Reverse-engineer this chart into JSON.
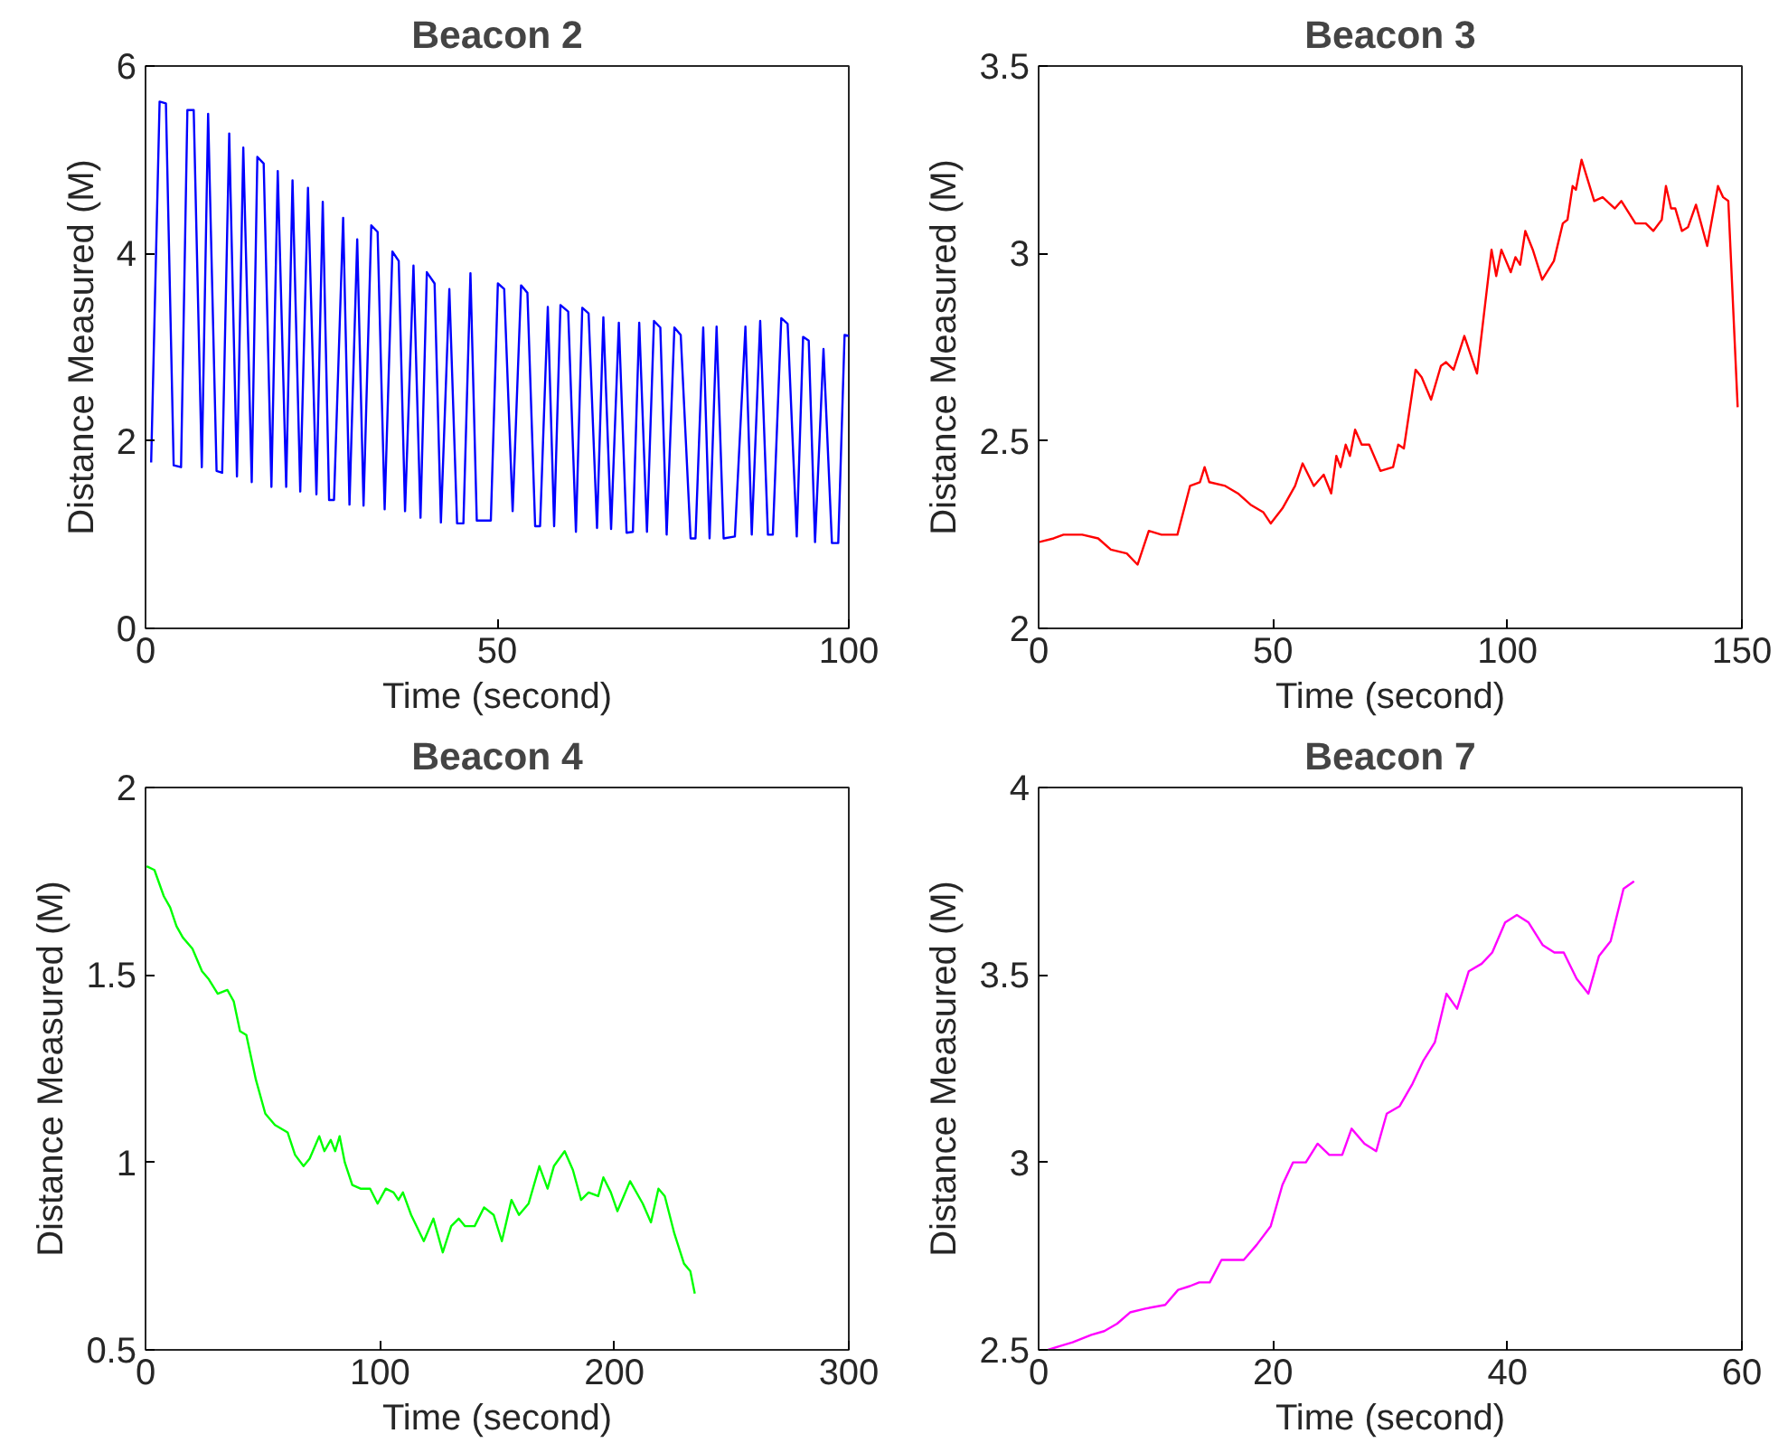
{
  "chart_data": [
    {
      "type": "line",
      "title": "Beacon 2",
      "xlabel": "Time (second)",
      "ylabel": "Distance Measured (M)",
      "color": "#0000ff",
      "grid": false,
      "xlim": [
        0,
        100
      ],
      "ylim": [
        0,
        6
      ],
      "xticks": [
        0,
        50,
        100
      ],
      "yticks": [
        0,
        2,
        4,
        6
      ],
      "x": [
        0.8,
        2,
        2.9,
        4,
        5.05,
        5.95,
        6.85,
        8.0,
        8.9,
        10.1,
        10.9,
        11.9,
        13,
        13.9,
        15.1,
        15.9,
        16.8,
        17.9,
        18.8,
        20,
        20.9,
        22,
        23.1,
        24.3,
        25.2,
        26.1,
        26.8,
        28.1,
        29,
        30.1,
        31,
        32.1,
        33,
        34,
        35.1,
        36,
        36.9,
        38.1,
        39.1,
        40,
        41.1,
        42,
        43.2,
        44.3,
        45.2,
        46.2,
        47.1,
        49.1,
        50.1,
        51,
        52.2,
        53.4,
        54.3,
        55.4,
        56.1,
        57.2,
        58.1,
        59,
        60.1,
        61.2,
        62.1,
        63,
        64.2,
        65.1,
        66.2,
        67.3,
        68.4,
        69.3,
        70.2,
        71.3,
        72.3,
        73.2,
        74.1,
        75.2,
        76.1,
        77.5,
        78.2,
        79.3,
        80.2,
        81.2,
        82.2,
        83.8,
        85.3,
        86.2,
        87.4,
        88.5,
        89.2,
        90.4,
        91.3,
        92.6,
        93.5,
        94.3,
        95.2,
        96.4,
        97.6,
        98.5,
        99.4,
        100
      ],
      "values": [
        1.77,
        5.62,
        5.6,
        1.74,
        1.72,
        5.53,
        5.53,
        1.72,
        5.49,
        1.68,
        1.66,
        5.28,
        1.62,
        5.13,
        1.56,
        5.03,
        4.96,
        1.51,
        4.88,
        1.51,
        4.78,
        1.46,
        4.7,
        1.43,
        4.55,
        1.37,
        1.37,
        4.38,
        1.32,
        4.15,
        1.31,
        4.3,
        4.23,
        1.27,
        4.02,
        3.92,
        1.25,
        3.87,
        1.18,
        3.8,
        3.68,
        1.13,
        3.62,
        1.12,
        1.12,
        3.79,
        1.15,
        1.15,
        3.68,
        3.62,
        1.25,
        3.66,
        3.58,
        1.09,
        1.09,
        3.43,
        1.09,
        3.45,
        3.38,
        1.03,
        3.42,
        3.36,
        1.07,
        3.32,
        1.06,
        3.26,
        1.02,
        1.03,
        3.26,
        1.03,
        3.28,
        3.21,
        1.0,
        3.21,
        3.13,
        0.96,
        0.96,
        3.21,
        0.96,
        3.22,
        0.96,
        0.98,
        3.22,
        1.0,
        3.28,
        1.0,
        1.0,
        3.31,
        3.25,
        0.98,
        3.11,
        3.07,
        0.92,
        2.98,
        0.91,
        0.91,
        3.13,
        3.12
      ]
    },
    {
      "type": "line",
      "title": "Beacon 3",
      "xlabel": "Time (second)",
      "ylabel": "Distance Measured (M)",
      "color": "#ff0000",
      "grid": false,
      "xlim": [
        0,
        150
      ],
      "ylim": [
        2,
        3.5
      ],
      "xticks": [
        0,
        50,
        100,
        150
      ],
      "yticks": [
        2,
        2.5,
        3,
        3.5
      ],
      "x": [
        0,
        3.2,
        5.3,
        9.3,
        12.7,
        15.4,
        18.8,
        21.1,
        23.5,
        26.2,
        27.9,
        29.6,
        32.3,
        34.4,
        35.4,
        36.4,
        39.8,
        42.5,
        45.2,
        47.9,
        49.5,
        52,
        54.7,
        56.3,
        58.7,
        60.8,
        62.4,
        63.5,
        64.4,
        65.5,
        66.4,
        67.5,
        68.9,
        70.5,
        72.9,
        75.6,
        76.7,
        77.9,
        80.4,
        81.7,
        83.7,
        85.8,
        86.9,
        88.5,
        90.8,
        93.5,
        96.6,
        97.6,
        98.7,
        100.7,
        101.7,
        102.7,
        103.8,
        105.4,
        107.4,
        109.9,
        111.8,
        112.8,
        113.9,
        114.6,
        115.8,
        118.5,
        120.3,
        122.9,
        124.3,
        127.3,
        129.5,
        131.1,
        132.9,
        133.8,
        134.9,
        135.8,
        137.2,
        138.5,
        140.2,
        142.6,
        144.9,
        146,
        147.1,
        149.1
      ],
      "values": [
        2.23,
        2.24,
        2.25,
        2.25,
        2.24,
        2.21,
        2.2,
        2.17,
        2.26,
        2.25,
        2.25,
        2.25,
        2.38,
        2.39,
        2.43,
        2.39,
        2.38,
        2.36,
        2.33,
        2.31,
        2.28,
        2.32,
        2.38,
        2.44,
        2.38,
        2.41,
        2.36,
        2.46,
        2.43,
        2.49,
        2.46,
        2.53,
        2.49,
        2.49,
        2.42,
        2.43,
        2.49,
        2.48,
        2.69,
        2.67,
        2.61,
        2.7,
        2.71,
        2.69,
        2.78,
        2.68,
        3.01,
        2.94,
        3.01,
        2.95,
        2.99,
        2.97,
        3.06,
        3.01,
        2.93,
        2.98,
        3.08,
        3.09,
        3.18,
        3.17,
        3.25,
        3.14,
        3.15,
        3.12,
        3.14,
        3.08,
        3.08,
        3.06,
        3.09,
        3.18,
        3.12,
        3.12,
        3.06,
        3.07,
        3.13,
        3.02,
        3.18,
        3.15,
        3.14,
        2.59
      ]
    },
    {
      "type": "line",
      "title": "Beacon 4",
      "xlabel": "Time (second)",
      "ylabel": "Distance Measured (M)",
      "color": "#00ff00",
      "grid": false,
      "xlim": [
        0,
        300
      ],
      "ylim": [
        0.5,
        2
      ],
      "xticks": [
        0,
        100,
        200,
        300
      ],
      "yticks": [
        0.5,
        1,
        1.5,
        2
      ],
      "x": [
        0.5,
        3.8,
        7.8,
        10.5,
        13.2,
        15.9,
        20,
        24.1,
        26.8,
        30.8,
        34.9,
        37.6,
        40.3,
        43,
        47.1,
        51.1,
        55.2,
        60.6,
        63.8,
        67.4,
        70,
        74.1,
        76.3,
        79,
        80.9,
        82.8,
        85,
        88.2,
        91.7,
        95.8,
        99,
        102.5,
        105.8,
        107.9,
        109.8,
        113.3,
        118.7,
        122.8,
        126.8,
        130.4,
        133.6,
        136.3,
        140.4,
        144.4,
        148.5,
        152,
        156.1,
        159.3,
        163.4,
        168,
        171.5,
        174.2,
        178.8,
        182.3,
        185.8,
        189,
        193.1,
        195.3,
        198.5,
        201.3,
        204,
        206.7,
        212.1,
        215.6,
        218.8,
        221.5,
        225.6,
        229.7,
        232.4,
        234.3
      ],
      "values": [
        1.79,
        1.78,
        1.71,
        1.68,
        1.63,
        1.6,
        1.57,
        1.51,
        1.49,
        1.45,
        1.46,
        1.43,
        1.35,
        1.34,
        1.22,
        1.13,
        1.1,
        1.08,
        1.02,
        0.99,
        1.01,
        1.07,
        1.03,
        1.06,
        1.03,
        1.07,
        1.0,
        0.94,
        0.93,
        0.93,
        0.89,
        0.93,
        0.92,
        0.9,
        0.92,
        0.86,
        0.79,
        0.85,
        0.76,
        0.83,
        0.85,
        0.83,
        0.83,
        0.88,
        0.86,
        0.79,
        0.9,
        0.86,
        0.89,
        0.99,
        0.93,
        0.99,
        1.03,
        0.98,
        0.9,
        0.92,
        0.91,
        0.96,
        0.92,
        0.87,
        0.91,
        0.95,
        0.89,
        0.84,
        0.93,
        0.91,
        0.81,
        0.73,
        0.71,
        0.65
      ]
    },
    {
      "type": "line",
      "title": "Beacon 7",
      "xlabel": "Time (second)",
      "ylabel": "Distance Measured (M)",
      "color": "#ff00ff",
      "grid": false,
      "xlim": [
        0,
        60
      ],
      "ylim": [
        2.5,
        4
      ],
      "xticks": [
        0,
        20,
        40,
        60
      ],
      "yticks": [
        2.5,
        3,
        3.5,
        4
      ],
      "x": [
        0.8,
        1.8,
        2.9,
        4.5,
        5.6,
        6.7,
        7.8,
        9.1,
        10.8,
        11.9,
        12.9,
        13.7,
        14.6,
        15.6,
        17.5,
        18.6,
        19.8,
        20.8,
        21.7,
        22.8,
        23.8,
        24.8,
        25.9,
        26.7,
        27.8,
        28.8,
        29.7,
        30.8,
        31.9,
        32.8,
        33.8,
        34.8,
        35.7,
        36.7,
        37.8,
        38.7,
        39.8,
        40.8,
        41.8,
        43,
        44,
        44.8,
        45.9,
        46.9,
        47.8,
        48.8,
        49.9,
        50.8
      ],
      "values": [
        2.5,
        2.51,
        2.52,
        2.54,
        2.55,
        2.57,
        2.6,
        2.61,
        2.62,
        2.66,
        2.67,
        2.68,
        2.68,
        2.74,
        2.74,
        2.78,
        2.83,
        2.94,
        3.0,
        3.0,
        3.05,
        3.02,
        3.02,
        3.09,
        3.05,
        3.03,
        3.13,
        3.15,
        3.21,
        3.27,
        3.32,
        3.45,
        3.41,
        3.51,
        3.53,
        3.56,
        3.64,
        3.66,
        3.64,
        3.58,
        3.56,
        3.56,
        3.49,
        3.45,
        3.55,
        3.59,
        3.73,
        3.75
      ]
    }
  ]
}
